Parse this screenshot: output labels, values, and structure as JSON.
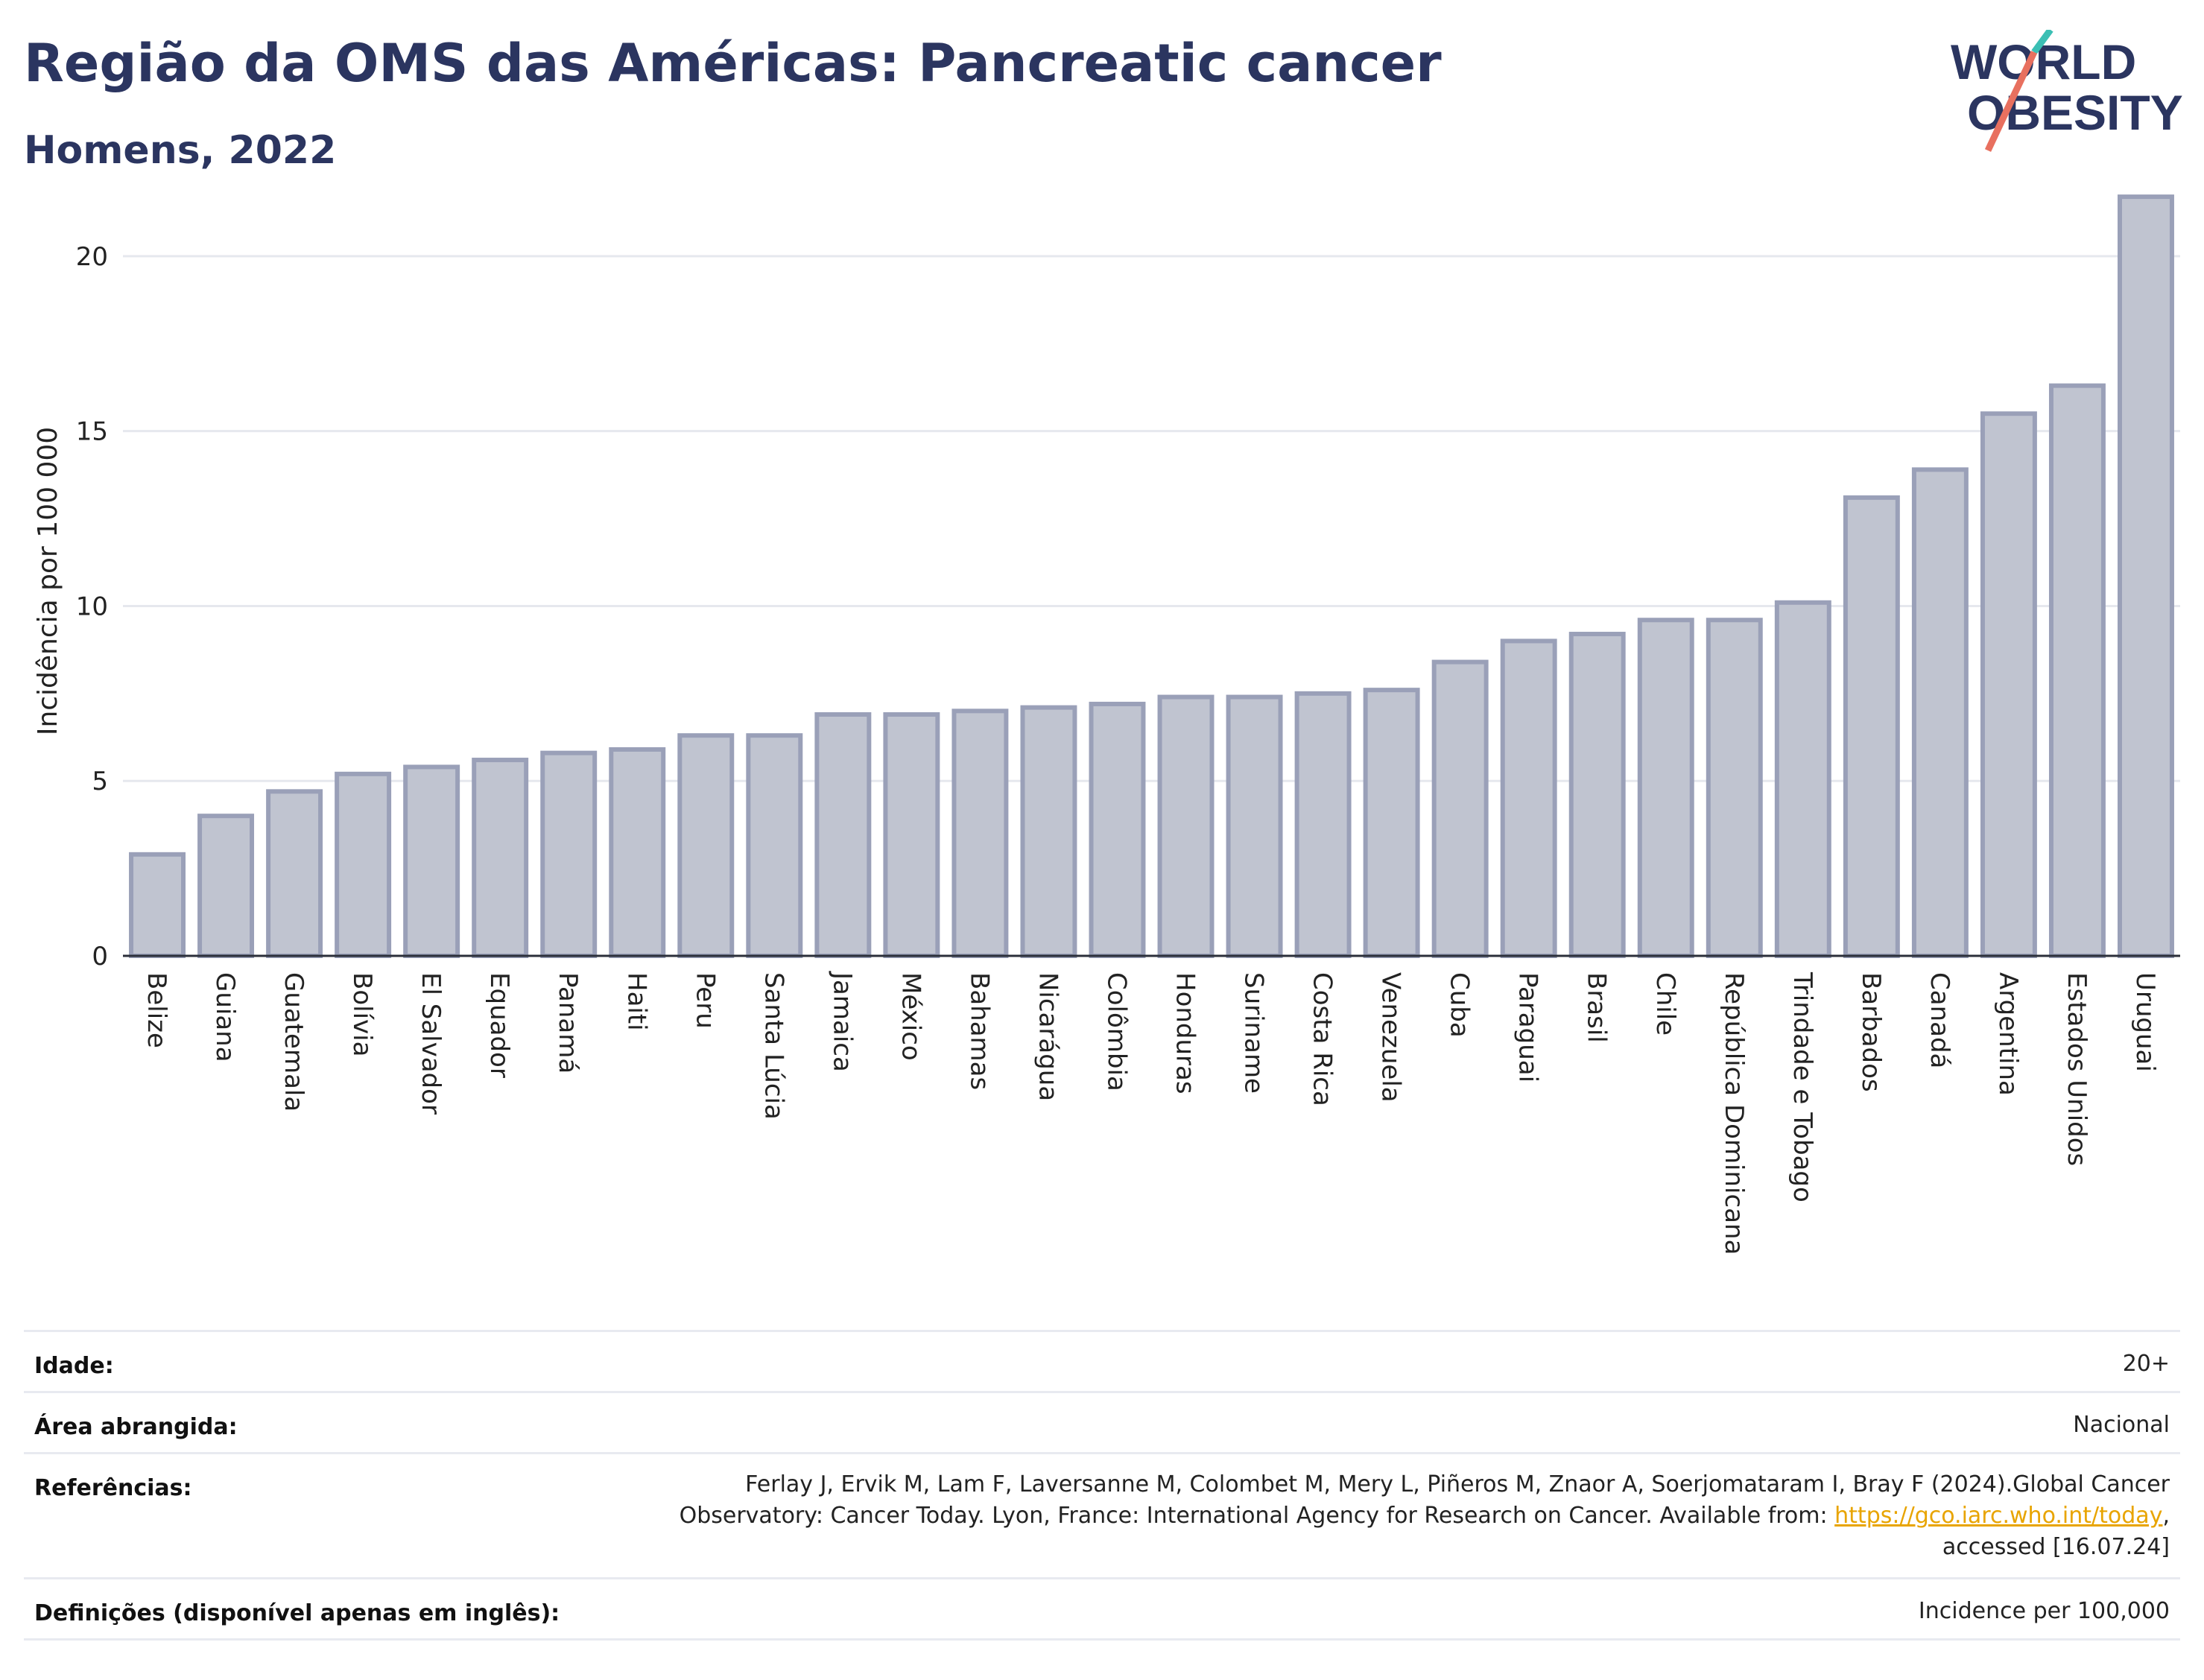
{
  "header": {
    "title": "Região da OMS das Américas: Pancreatic cancer",
    "subtitle": "Homens, 2022"
  },
  "logo": {
    "line1": "WORLD",
    "line2": "OBESITY",
    "colors": {
      "text": "#2b3560",
      "slash_red": "#e8705f",
      "slash_teal": "#3bbfb4"
    }
  },
  "chart_data": {
    "type": "bar",
    "title": "Região da OMS das Américas: Pancreatic cancer",
    "subtitle": "Homens, 2022",
    "xlabel": "",
    "ylabel": "Incidência por 100 000",
    "ylim": [
      0,
      22
    ],
    "yticks": [
      0,
      5,
      10,
      15,
      20
    ],
    "grid": true,
    "bar_color": "#c0c4d0",
    "bar_border_color": "#9aa0b8",
    "categories": [
      "Belize",
      "Guiana",
      "Guatemala",
      "Bolívia",
      "El Salvador",
      "Equador",
      "Panamá",
      "Haiti",
      "Peru",
      "Santa Lúcia",
      "Jamaica",
      "México",
      "Bahamas",
      "Nicarágua",
      "Colômbia",
      "Honduras",
      "Suriname",
      "Costa Rica",
      "Venezuela",
      "Cuba",
      "Paraguai",
      "Brasil",
      "Chile",
      "República Dominicana",
      "Trindade e Tobago",
      "Barbados",
      "Canadá",
      "Argentina",
      "Estados Unidos",
      "Uruguai"
    ],
    "values": [
      2.9,
      4.0,
      4.7,
      5.2,
      5.4,
      5.6,
      5.8,
      5.9,
      6.3,
      6.3,
      6.9,
      6.9,
      7.0,
      7.1,
      7.2,
      7.4,
      7.4,
      7.5,
      7.6,
      8.4,
      9.0,
      9.2,
      9.6,
      9.6,
      10.1,
      13.1,
      13.9,
      15.5,
      16.3,
      21.7
    ]
  },
  "meta": {
    "rows": [
      {
        "key": "Idade:",
        "value": "20+"
      },
      {
        "key": "Área abrangida:",
        "value": "Nacional"
      },
      {
        "key": "Referências:",
        "value_pre": "Ferlay J, Ervik M, Lam F, Laversanne M, Colombet M, Mery L, Piñeros M, Znaor A, Soerjomataram I, Bray F (2024).Global Cancer Observatory: Cancer Today. Lyon, France: International Agency for Research on Cancer. Available from: ",
        "link": "https://gco.iarc.who.int/today",
        "value_post": ", accessed [16.07.24]"
      },
      {
        "key": "Definições (disponível apenas em inglês):",
        "value": "Incidence per 100,000"
      }
    ]
  }
}
